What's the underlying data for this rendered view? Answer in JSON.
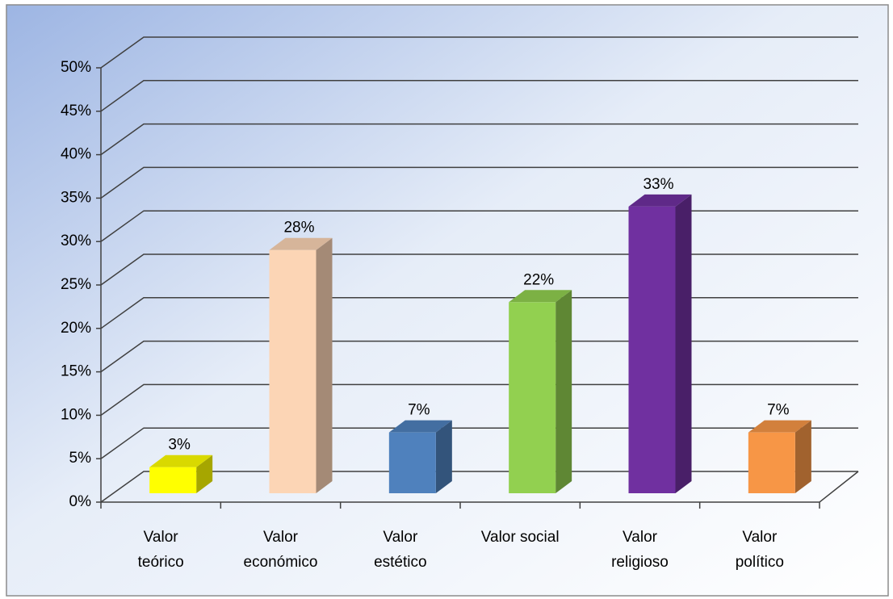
{
  "chart_data": {
    "type": "bar3d",
    "categories": [
      "Valor teórico",
      "Valor económico",
      "Valor estético",
      "Valor social",
      "Valor religioso",
      "Valor político"
    ],
    "values": [
      3,
      28,
      7,
      22,
      33,
      7
    ],
    "value_labels": [
      "3%",
      "28%",
      "7%",
      "22%",
      "33%",
      "7%"
    ],
    "colors": [
      "#ffff00",
      "#fcd5b5",
      "#4f81bd",
      "#92d050",
      "#7030a0",
      "#f79646"
    ],
    "ylim": [
      0,
      50
    ],
    "yticks": [
      {
        "value": 0,
        "label": "0%"
      },
      {
        "value": 5,
        "label": "5%"
      },
      {
        "value": 10,
        "label": "10%"
      },
      {
        "value": 15,
        "label": "15%"
      },
      {
        "value": 20,
        "label": "20%"
      },
      {
        "value": 25,
        "label": "25%"
      },
      {
        "value": 30,
        "label": "30%"
      },
      {
        "value": 35,
        "label": "35%"
      },
      {
        "value": 40,
        "label": "40%"
      },
      {
        "value": 45,
        "label": "45%"
      },
      {
        "value": 50,
        "label": "50%"
      }
    ],
    "grid": true
  }
}
